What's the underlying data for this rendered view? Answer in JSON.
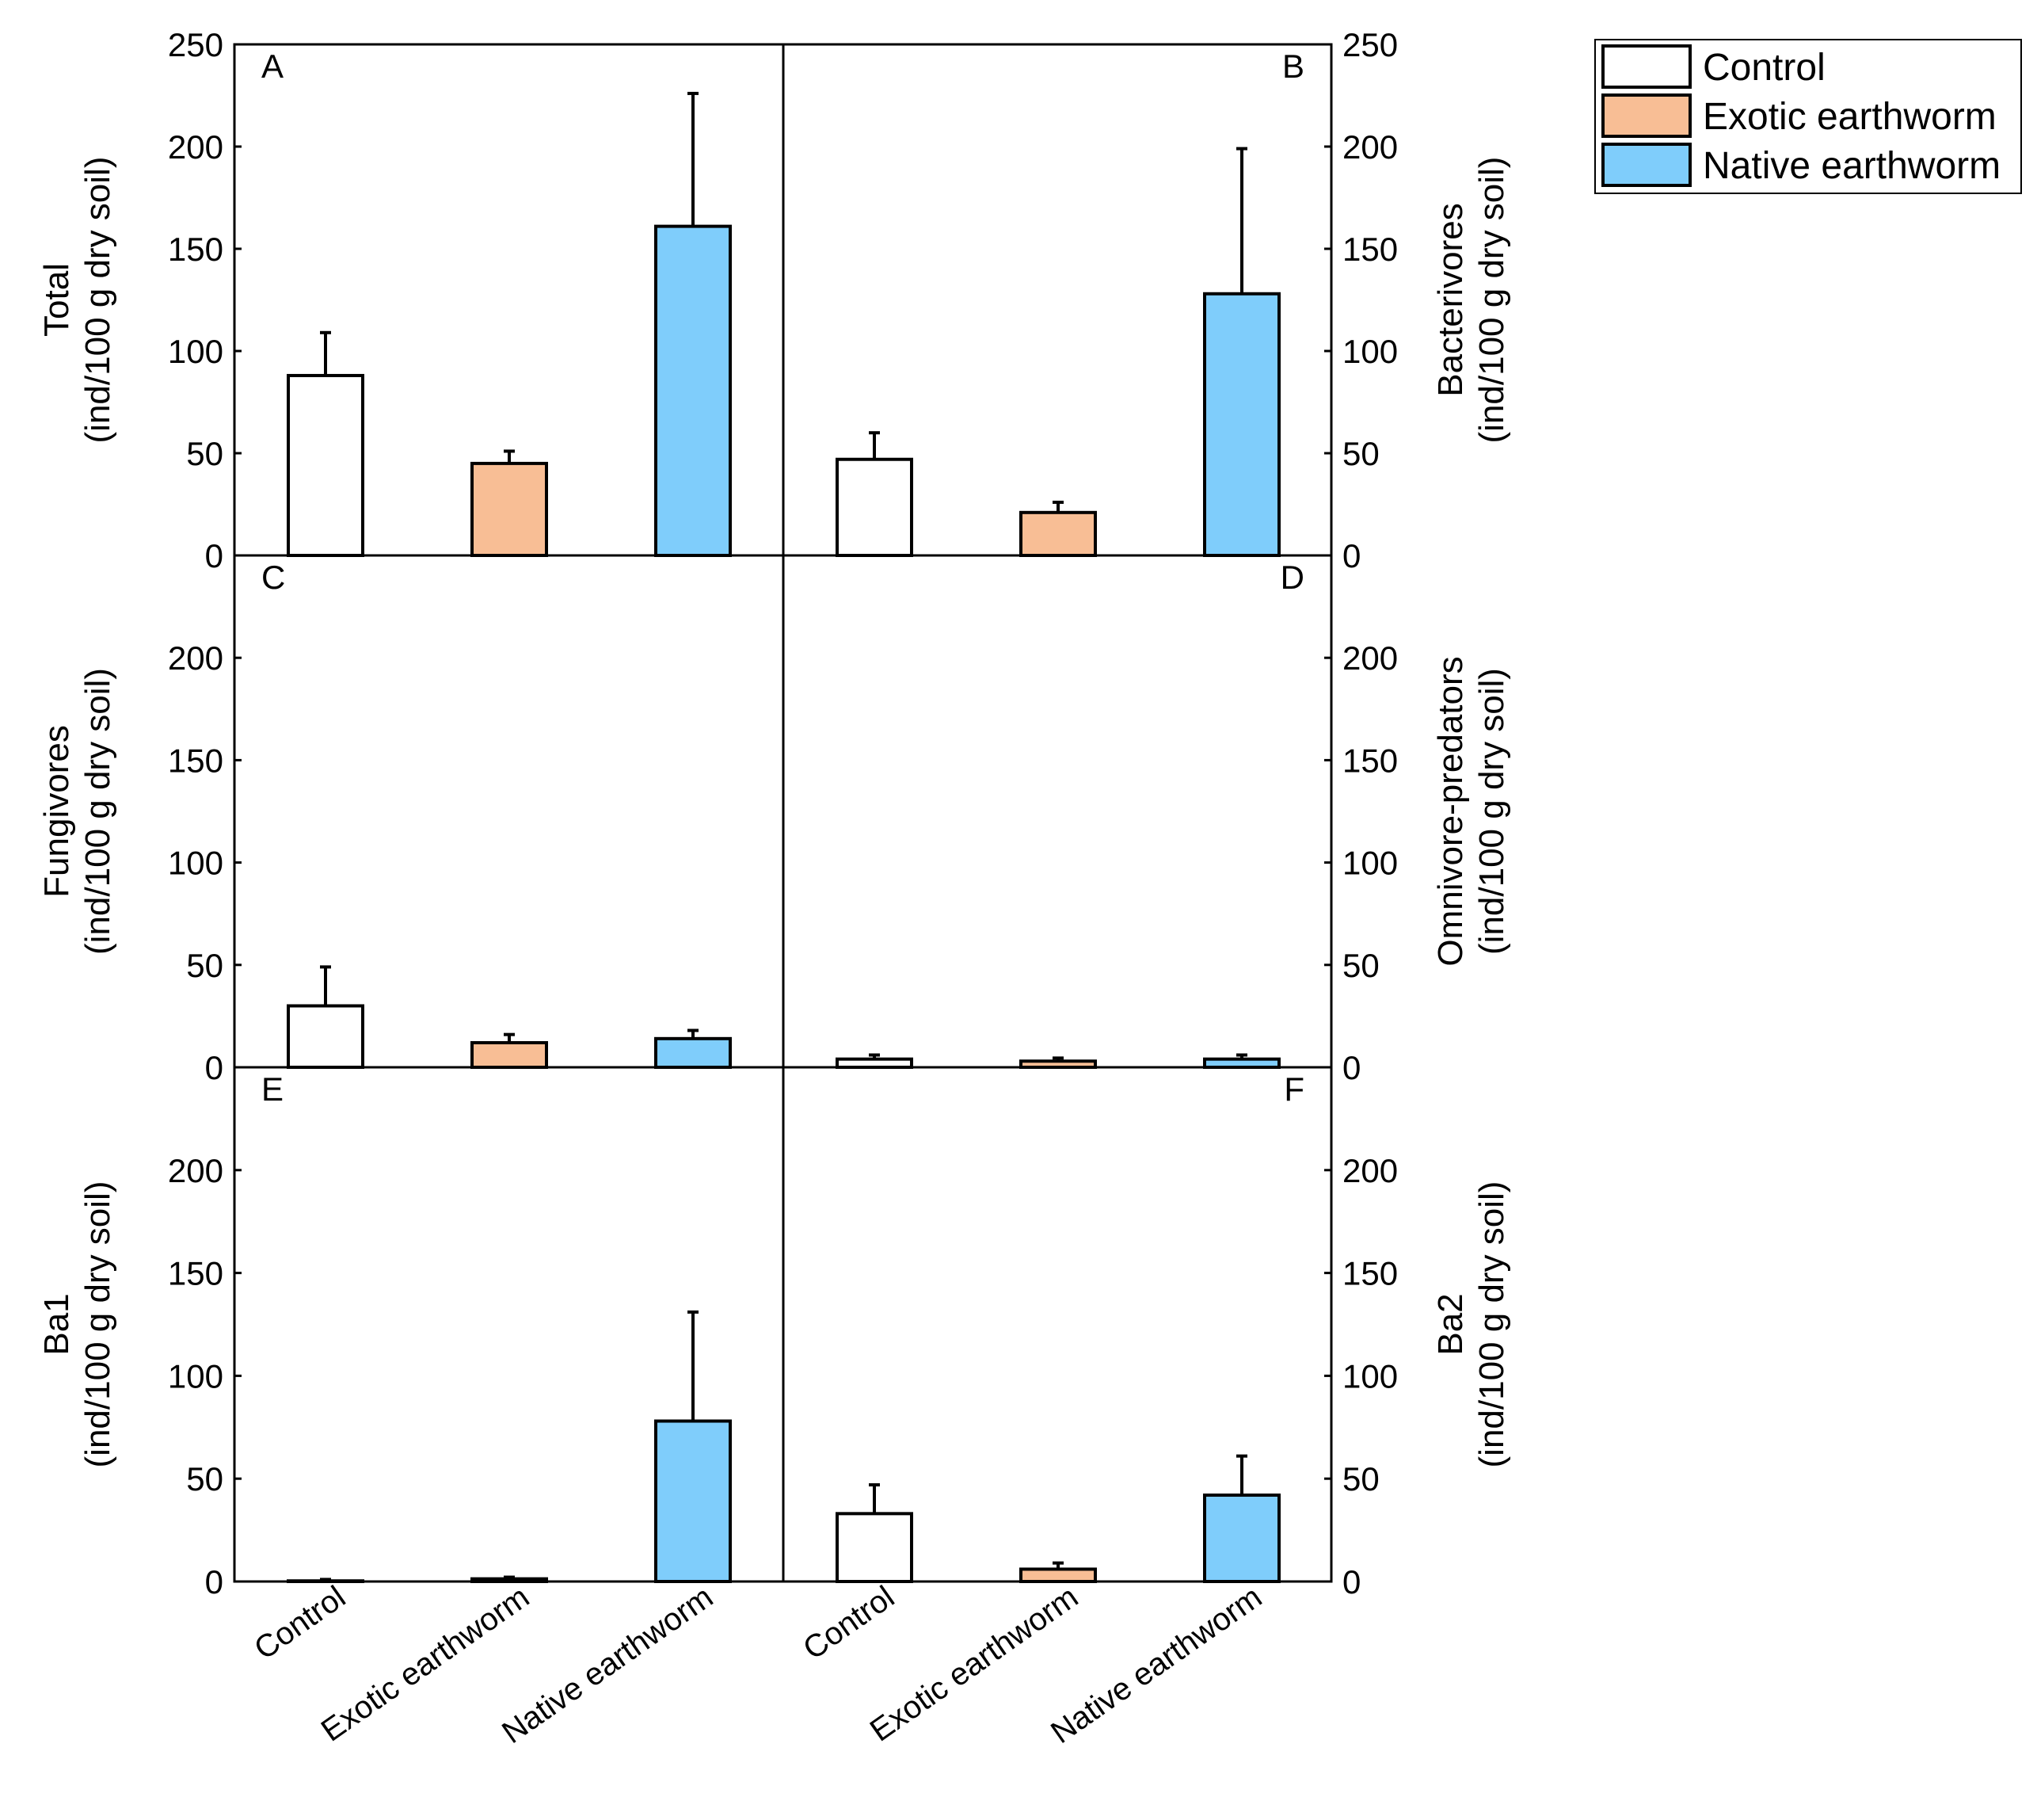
{
  "legend": {
    "entries": [
      {
        "label": "Control",
        "color": "#ffffff"
      },
      {
        "label": "Exotic earthworm",
        "color": "#f8be95"
      },
      {
        "label": "Native earthworm",
        "color": "#7fcdfb"
      }
    ]
  },
  "chart_data": [
    {
      "panel": "A",
      "type": "bar",
      "ylabel_line1": "Total",
      "ylabel_line2": "(ind/100 g dry soil)",
      "ylim": [
        0,
        250
      ],
      "yticks": [
        0,
        50,
        100,
        150,
        200,
        250
      ],
      "categories": [
        "Control",
        "Exotic earthworm",
        "Native earthworm"
      ],
      "values": [
        88,
        45,
        161
      ],
      "errors": [
        21,
        6,
        65
      ]
    },
    {
      "panel": "B",
      "type": "bar",
      "ylabel_line1": "Bacterivores",
      "ylabel_line2": "(ind/100 g dry soil)",
      "ylim": [
        0,
        250
      ],
      "yticks": [
        0,
        50,
        100,
        150,
        200,
        250
      ],
      "categories": [
        "Control",
        "Exotic earthworm",
        "Native earthworm"
      ],
      "values": [
        47,
        21,
        128
      ],
      "errors": [
        13,
        5,
        71
      ]
    },
    {
      "panel": "C",
      "type": "bar",
      "ylabel_line1": "Fungivores",
      "ylabel_line2": "(ind/100 g dry soil)",
      "ylim": [
        0,
        250
      ],
      "yticks": [
        0,
        50,
        100,
        150,
        200
      ],
      "categories": [
        "Control",
        "Exotic earthworm",
        "Native earthworm"
      ],
      "values": [
        30,
        12,
        14
      ],
      "errors": [
        19,
        4,
        4
      ]
    },
    {
      "panel": "D",
      "type": "bar",
      "ylabel_line1": "Omnivore-predators",
      "ylabel_line2": "(ind/100 g dry soil)",
      "ylim": [
        0,
        250
      ],
      "yticks": [
        0,
        50,
        100,
        150,
        200
      ],
      "categories": [
        "Control",
        "Exotic earthworm",
        "Native earthworm"
      ],
      "values": [
        4,
        3,
        4
      ],
      "errors": [
        2,
        1.5,
        2
      ]
    },
    {
      "panel": "E",
      "type": "bar",
      "ylabel_line1": "Ba1",
      "ylabel_line2": "(ind/100 g dry soil)",
      "ylim": [
        0,
        250
      ],
      "yticks": [
        0,
        50,
        100,
        150,
        200
      ],
      "categories": [
        "Control",
        "Exotic earthworm",
        "Native earthworm"
      ],
      "values": [
        0.3,
        1.3,
        78
      ],
      "errors": [
        0.7,
        0.8,
        53
      ]
    },
    {
      "panel": "F",
      "type": "bar",
      "ylabel_line1": "Ba2",
      "ylabel_line2": "(ind/100 g dry soil)",
      "ylim": [
        0,
        250
      ],
      "yticks": [
        0,
        50,
        100,
        150,
        200
      ],
      "categories": [
        "Control",
        "Exotic earthworm",
        "Native earthworm"
      ],
      "values": [
        33,
        6,
        42
      ],
      "errors": [
        14,
        3,
        19
      ]
    }
  ]
}
